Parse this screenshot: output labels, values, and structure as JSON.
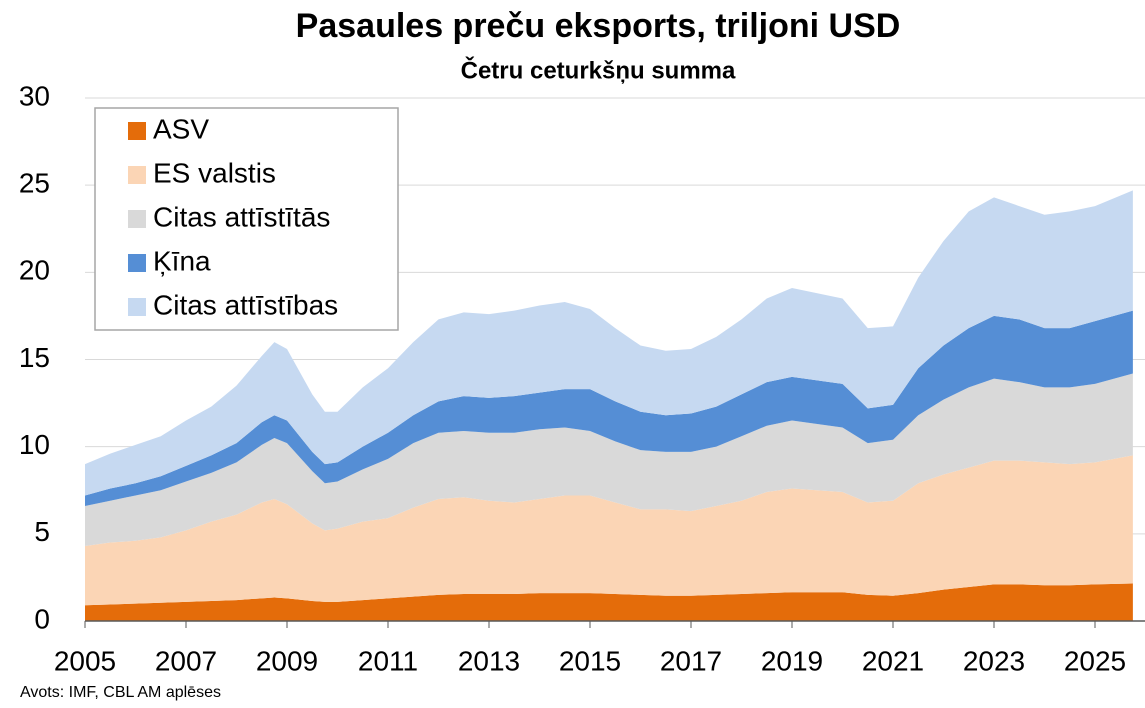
{
  "chart_data": {
    "type": "stacked_area",
    "title": "Pasaules preču eksports, triljoni USD",
    "subtitle": "Četru ceturkšņu summa",
    "source": "Avots: IMF, CBL AM aplēses",
    "x": [
      2005,
      2005.5,
      2006,
      2006.5,
      2007,
      2007.5,
      2008,
      2008.5,
      2008.75,
      2009,
      2009.5,
      2009.75,
      2010,
      2010.5,
      2011,
      2011.5,
      2012,
      2012.5,
      2013,
      2013.5,
      2014,
      2014.5,
      2015,
      2015.5,
      2016,
      2016.5,
      2017,
      2017.5,
      2018,
      2018.5,
      2019,
      2019.5,
      2020,
      2020.5,
      2021,
      2021.5,
      2022,
      2022.5,
      2023,
      2023.5,
      2024,
      2024.5,
      2025,
      2025.75
    ],
    "series": [
      {
        "name": "ASV",
        "color": "#e46c0a",
        "values": [
          0.9,
          0.95,
          1.0,
          1.05,
          1.1,
          1.15,
          1.2,
          1.3,
          1.35,
          1.3,
          1.15,
          1.1,
          1.1,
          1.2,
          1.3,
          1.4,
          1.5,
          1.55,
          1.55,
          1.55,
          1.6,
          1.6,
          1.6,
          1.55,
          1.5,
          1.45,
          1.45,
          1.5,
          1.55,
          1.6,
          1.65,
          1.65,
          1.65,
          1.5,
          1.45,
          1.6,
          1.8,
          1.95,
          2.1,
          2.1,
          2.05,
          2.05,
          2.1,
          2.15
        ]
      },
      {
        "name": "ES valstis",
        "color": "#fbd5b5",
        "values": [
          3.4,
          3.55,
          3.6,
          3.75,
          4.1,
          4.55,
          4.9,
          5.5,
          5.65,
          5.4,
          4.45,
          4.1,
          4.2,
          4.5,
          4.6,
          5.1,
          5.5,
          5.55,
          5.35,
          5.25,
          5.4,
          5.6,
          5.6,
          5.25,
          4.9,
          4.95,
          4.85,
          5.1,
          5.35,
          5.8,
          5.95,
          5.85,
          5.75,
          5.3,
          5.45,
          6.3,
          6.6,
          6.85,
          7.1,
          7.1,
          7.05,
          6.95,
          7.0,
          7.35
        ]
      },
      {
        "name": "Citas attīstītās",
        "color": "#d9d9d9",
        "values": [
          2.3,
          2.4,
          2.6,
          2.7,
          2.8,
          2.8,
          3.0,
          3.3,
          3.5,
          3.5,
          3.0,
          2.7,
          2.7,
          3.0,
          3.4,
          3.7,
          3.8,
          3.8,
          3.9,
          4.0,
          4.0,
          3.9,
          3.7,
          3.5,
          3.4,
          3.3,
          3.4,
          3.4,
          3.7,
          3.8,
          3.9,
          3.8,
          3.7,
          3.4,
          3.5,
          3.9,
          4.3,
          4.6,
          4.7,
          4.5,
          4.3,
          4.4,
          4.5,
          4.7
        ]
      },
      {
        "name": "Ķīna",
        "color": "#558ed5",
        "values": [
          0.6,
          0.7,
          0.7,
          0.8,
          0.9,
          1.0,
          1.1,
          1.3,
          1.3,
          1.3,
          1.1,
          1.1,
          1.1,
          1.3,
          1.5,
          1.6,
          1.8,
          2.0,
          2.0,
          2.1,
          2.1,
          2.2,
          2.4,
          2.3,
          2.2,
          2.1,
          2.2,
          2.3,
          2.4,
          2.5,
          2.5,
          2.5,
          2.5,
          2.0,
          2.0,
          2.7,
          3.1,
          3.4,
          3.6,
          3.6,
          3.4,
          3.4,
          3.6,
          3.6
        ]
      },
      {
        "name": "Citas attīstības",
        "color": "#c6d9f1",
        "values": [
          1.8,
          2.0,
          2.2,
          2.3,
          2.6,
          2.8,
          3.3,
          3.8,
          4.2,
          4.1,
          3.3,
          3.0,
          2.9,
          3.4,
          3.7,
          4.2,
          4.7,
          4.8,
          4.8,
          4.9,
          5.0,
          5.0,
          4.6,
          4.2,
          3.8,
          3.7,
          3.7,
          4.0,
          4.3,
          4.8,
          5.1,
          5.0,
          4.9,
          4.6,
          4.5,
          5.2,
          6.0,
          6.7,
          6.8,
          6.5,
          6.5,
          6.7,
          6.6,
          6.9
        ]
      }
    ],
    "xlim": [
      2005,
      2026
    ],
    "xticks": [
      2005,
      2007,
      2009,
      2011,
      2013,
      2015,
      2017,
      2019,
      2021,
      2023,
      2025
    ],
    "ylim": [
      0,
      30
    ],
    "yticks": [
      0,
      5,
      10,
      15,
      20,
      25,
      30
    ],
    "grid": true,
    "legend": "upper left"
  }
}
